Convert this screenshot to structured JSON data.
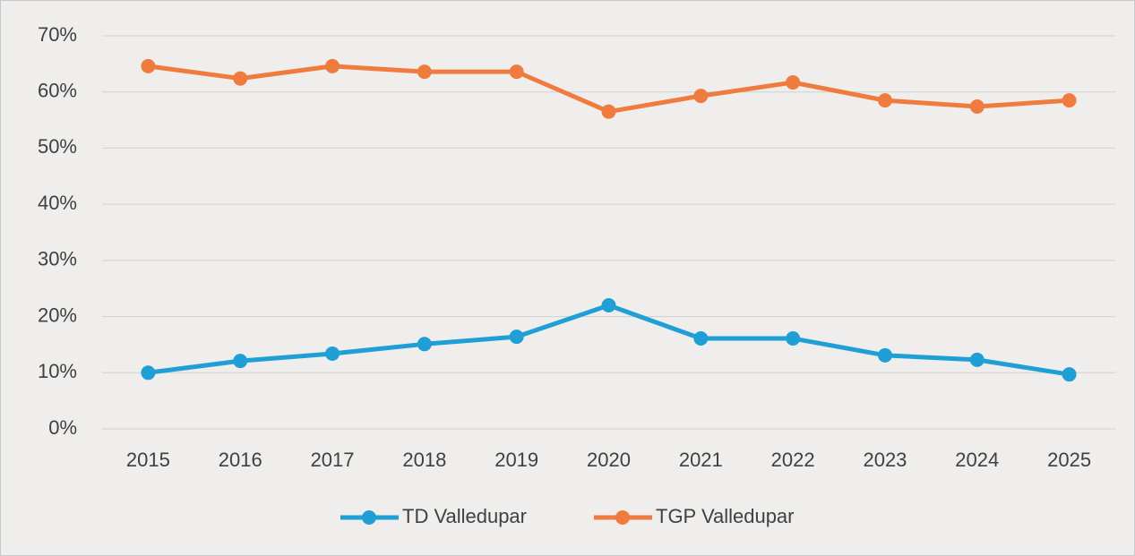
{
  "chart_data": {
    "type": "line",
    "categories": [
      "2015",
      "2016",
      "2017",
      "2018",
      "2019",
      "2020",
      "2021",
      "2022",
      "2023",
      "2024",
      "2025"
    ],
    "series": [
      {
        "name": "TD Valledupar",
        "color": "#1f9fd5",
        "values": [
          10.0,
          12.1,
          13.4,
          15.1,
          16.4,
          22.0,
          16.1,
          16.1,
          13.1,
          12.3,
          9.7
        ]
      },
      {
        "name": "TGP Valledupar",
        "color": "#ef7b3e",
        "values": [
          64.6,
          62.4,
          64.6,
          63.6,
          63.6,
          56.5,
          59.3,
          61.7,
          58.5,
          57.4,
          58.5
        ]
      }
    ],
    "ylim": [
      0,
      70
    ],
    "yticks": [
      {
        "value": 0,
        "label": "0%"
      },
      {
        "value": 10,
        "label": "10%"
      },
      {
        "value": 20,
        "label": "20%"
      },
      {
        "value": 30,
        "label": "30%"
      },
      {
        "value": 40,
        "label": "40%"
      },
      {
        "value": 50,
        "label": "50%"
      },
      {
        "value": 60,
        "label": "60%"
      },
      {
        "value": 70,
        "label": "70%"
      }
    ],
    "grid": true,
    "legend": "bottom"
  }
}
